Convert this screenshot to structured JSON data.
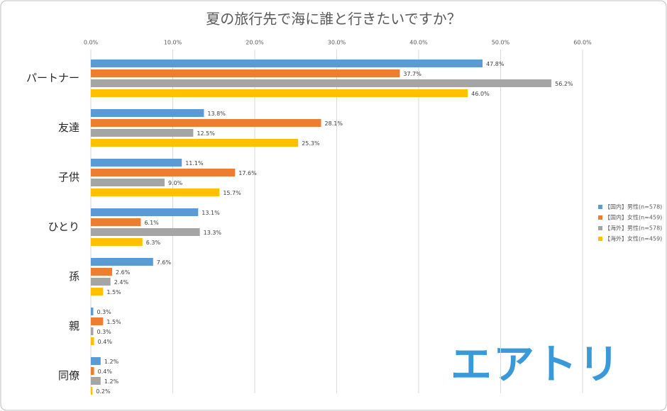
{
  "chart_data": {
    "type": "bar",
    "orientation": "horizontal",
    "title": "夏の旅行先で海に誰と行きたいですか？",
    "categories": [
      "パートナー",
      "友達",
      "子供",
      "ひとり",
      "孫",
      "親",
      "同僚"
    ],
    "series": [
      {
        "name": "【国内】男性(n=578)",
        "color": "#5b9bd5",
        "values": [
          47.8,
          13.8,
          11.1,
          13.1,
          7.6,
          0.3,
          1.2
        ],
        "value_labels": [
          "47.8%",
          "13.8%",
          "11.1%",
          "13.1%",
          "7.6%",
          "0.3%",
          "1.2%"
        ]
      },
      {
        "name": "【国内】女性(n=459)",
        "color": "#ed7d31",
        "values": [
          37.7,
          28.1,
          17.6,
          6.1,
          2.6,
          1.5,
          0.4
        ],
        "value_labels": [
          "37.7%",
          "28.1%",
          "17.6%",
          "6.1%",
          "2.6%",
          "1.5%",
          "0.4%"
        ]
      },
      {
        "name": "【海外】男性(n=578)",
        "color": "#a5a5a5",
        "values": [
          56.2,
          12.5,
          9.0,
          13.3,
          2.4,
          0.3,
          1.2
        ],
        "value_labels": [
          "56.2%",
          "12.5%",
          "9.0%",
          "13.3%",
          "2.4%",
          "0.3%",
          "1.2%"
        ]
      },
      {
        "name": "【海外】女性(n=459)",
        "color": "#ffc000",
        "values": [
          46.0,
          25.3,
          15.7,
          6.3,
          1.5,
          0.4,
          0.2
        ],
        "value_labels": [
          "46.0%",
          "25.3%",
          "15.7%",
          "6.3%",
          "1.5%",
          "0.4%",
          "0.2%"
        ]
      }
    ],
    "xlim": [
      0,
      60
    ],
    "xticks": [
      {
        "value": 0,
        "label": "0.0%"
      },
      {
        "value": 10,
        "label": "10.0%"
      },
      {
        "value": 20,
        "label": "20.0%"
      },
      {
        "value": 30,
        "label": "30.0%"
      },
      {
        "value": 40,
        "label": "40.0%"
      },
      {
        "value": 50,
        "label": "50.0%"
      },
      {
        "value": 60,
        "label": "60.0%"
      }
    ],
    "grid": true,
    "legend": "right",
    "logo": "エアトリ"
  }
}
